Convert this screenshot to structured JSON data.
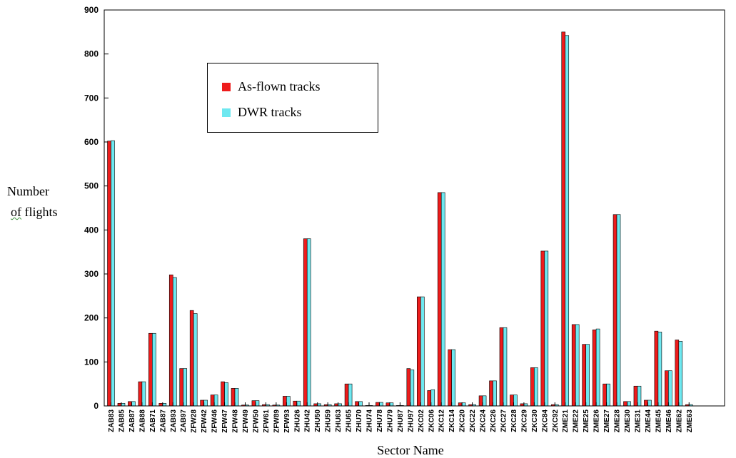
{
  "chart_data": {
    "type": "bar",
    "xlabel": "Sector Name",
    "ylabel_line1": "Number",
    "ylabel_line2_a": "of",
    "ylabel_line2_b": " flights",
    "ylim": [
      0,
      900
    ],
    "yticks": [
      0,
      100,
      200,
      300,
      400,
      500,
      600,
      700,
      800,
      900
    ],
    "grid": false,
    "legend_position": "upper-left",
    "categories": [
      "ZAB83",
      "ZAB85",
      "ZAB87",
      "ZAB88",
      "ZAB71",
      "ZAB87",
      "ZAB93",
      "ZAB97",
      "ZFW28",
      "ZFW42",
      "ZFW46",
      "ZFW47",
      "ZFW48",
      "ZFW49",
      "ZFW50",
      "ZFW61",
      "ZFW89",
      "ZFW93",
      "ZHU26",
      "ZHU42",
      "ZHU50",
      "ZHU59",
      "ZHU63",
      "ZHU65",
      "ZHU70",
      "ZHU74",
      "ZHU78",
      "ZHU79",
      "ZHU87",
      "ZHU97",
      "ZKC02",
      "ZKC06",
      "ZKC12",
      "ZKC14",
      "ZKC20",
      "ZKC22",
      "ZKC24",
      "ZKC26",
      "ZKC27",
      "ZKC28",
      "ZKC29",
      "ZKC30",
      "ZKC84",
      "ZKC92",
      "ZME21",
      "ZME22",
      "ZME25",
      "ZME26",
      "ZME27",
      "ZME28",
      "ZME30",
      "ZME31",
      "ZME44",
      "ZME45",
      "ZME46",
      "ZME62",
      "ZME63"
    ],
    "series": [
      {
        "name": "As-flown tracks",
        "color": "#ee1c1c",
        "values": [
          602,
          6,
          10,
          55,
          165,
          6,
          298,
          85,
          217,
          13,
          25,
          55,
          40,
          2,
          12,
          3,
          2,
          22,
          11,
          380,
          5,
          3,
          5,
          50,
          10,
          1,
          8,
          7,
          1,
          85,
          248,
          35,
          485,
          128,
          7,
          3,
          23,
          57,
          178,
          25,
          5,
          87,
          352,
          3,
          850,
          185,
          140,
          173,
          50,
          435,
          10,
          45,
          13,
          170,
          80,
          150,
          3
        ]
      },
      {
        "name": "DWR tracks",
        "color": "#6ee8f0",
        "values": [
          603,
          6,
          10,
          55,
          165,
          6,
          292,
          85,
          210,
          13,
          25,
          53,
          40,
          2,
          12,
          3,
          2,
          22,
          11,
          380,
          5,
          3,
          5,
          50,
          10,
          1,
          8,
          7,
          1,
          82,
          248,
          37,
          485,
          128,
          7,
          3,
          23,
          57,
          178,
          25,
          5,
          87,
          352,
          3,
          842,
          185,
          140,
          175,
          50,
          435,
          10,
          45,
          13,
          168,
          80,
          147,
          3
        ]
      }
    ]
  }
}
